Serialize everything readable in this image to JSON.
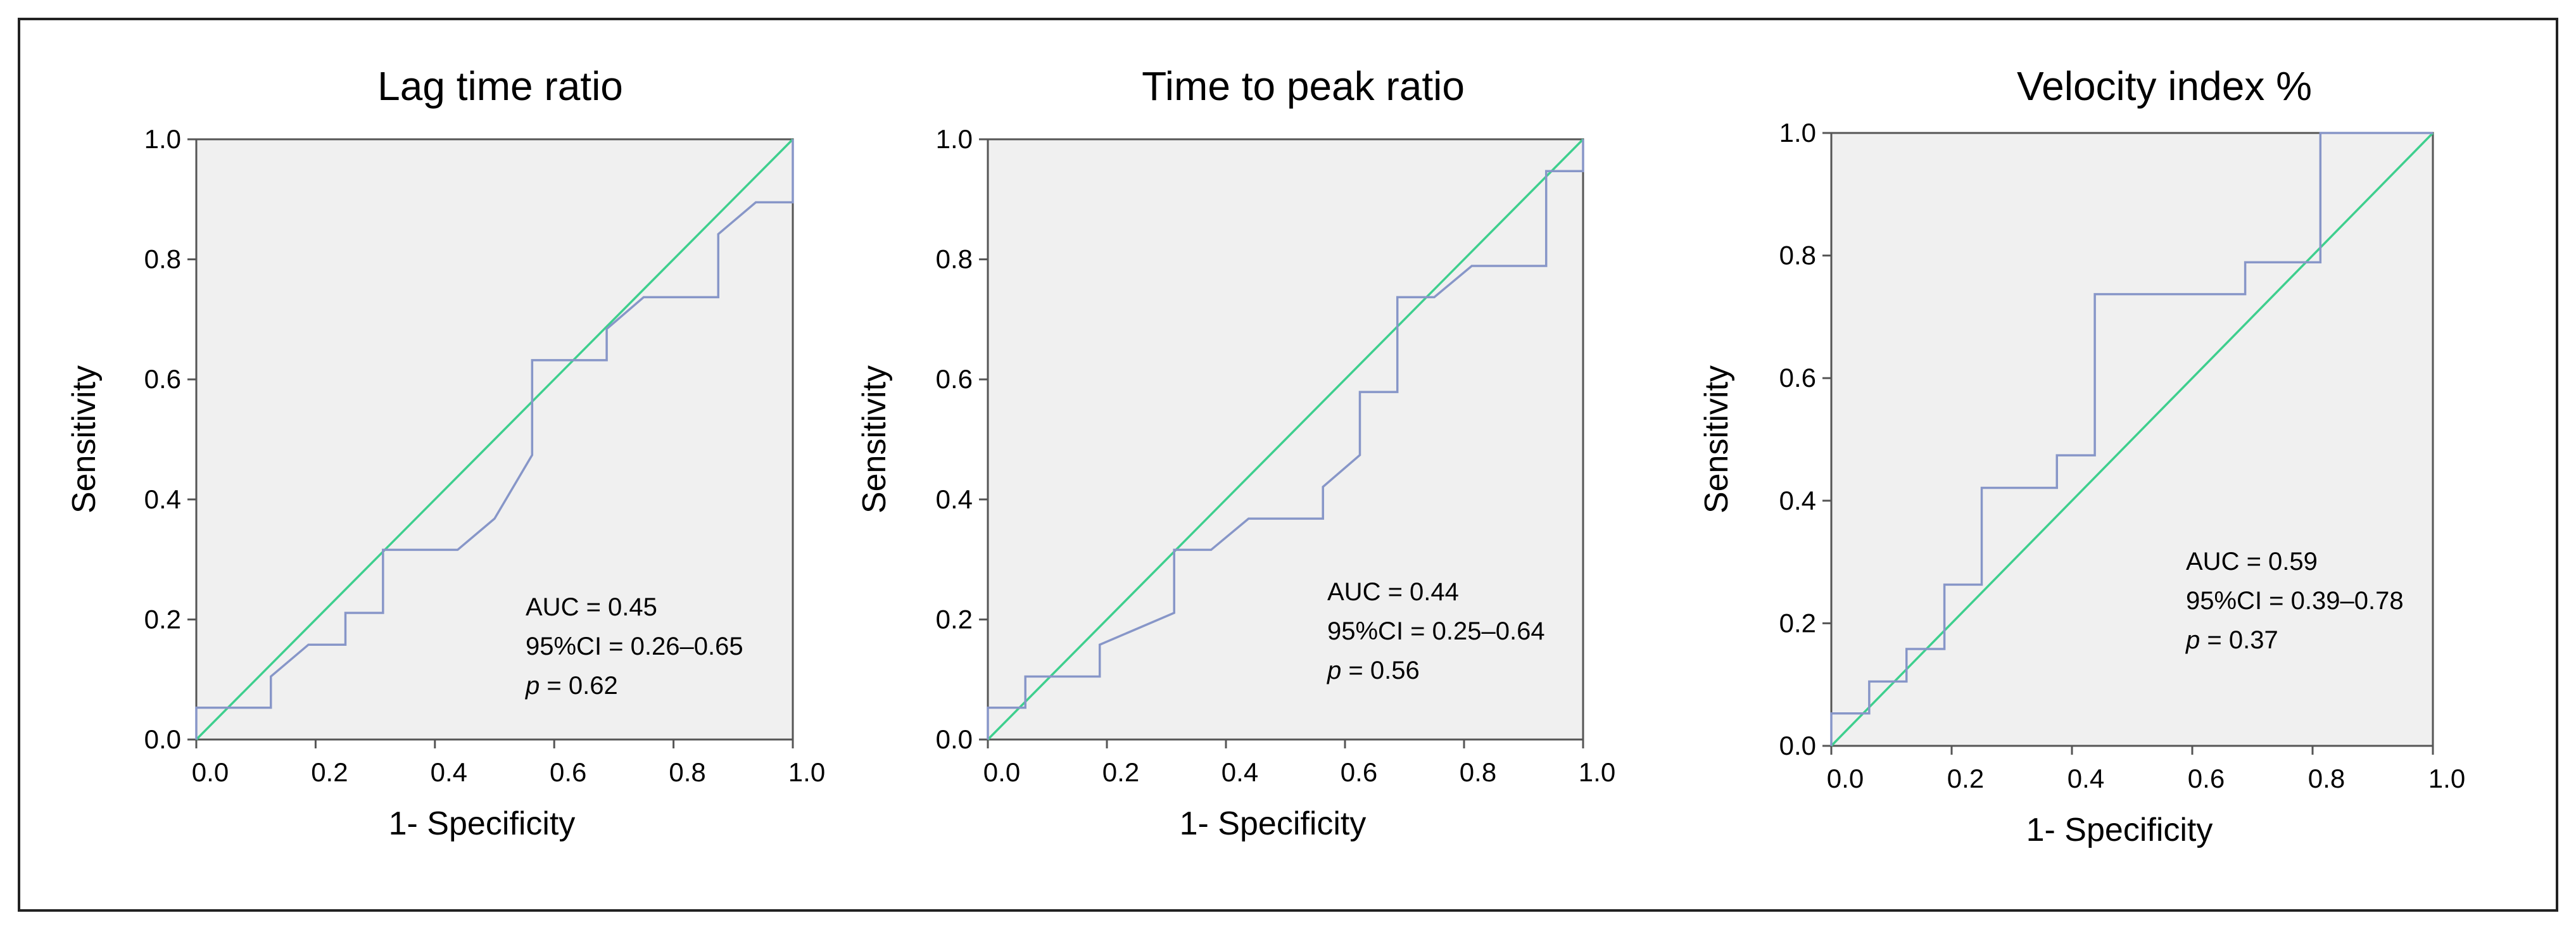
{
  "chart_data": [
    {
      "type": "line",
      "title": "Lag time ratio",
      "xlabel": "1- Specificity",
      "ylabel": "Sensitivity",
      "xlim": [
        0,
        1
      ],
      "ylim": [
        0,
        1
      ],
      "x_ticks": [
        "0.0",
        "0.2",
        "0.4",
        "0.6",
        "0.8",
        "1.0"
      ],
      "y_ticks": [
        "0.0",
        "0.2",
        "0.4",
        "0.6",
        "0.8",
        "1.0"
      ],
      "colors": {
        "roc": "#8796c8",
        "reference": "#3ecf8e",
        "background": "#f0f0f0"
      },
      "series": [
        {
          "name": "ROC curve",
          "x": [
            0,
            0,
            0.125,
            0.125,
            0.188,
            0.25,
            0.25,
            0.313,
            0.313,
            0.438,
            0.5,
            0.563,
            0.563,
            0.688,
            0.688,
            0.75,
            0.875,
            0.875,
            0.938,
            1.0,
            1.0
          ],
          "y": [
            0,
            0.053,
            0.053,
            0.105,
            0.158,
            0.158,
            0.211,
            0.211,
            0.316,
            0.316,
            0.368,
            0.474,
            0.632,
            0.632,
            0.684,
            0.737,
            0.737,
            0.842,
            0.895,
            0.895,
            1.0
          ]
        },
        {
          "name": "Reference line",
          "x": [
            0,
            1
          ],
          "y": [
            0,
            1
          ]
        }
      ],
      "stats": {
        "auc": "AUC = 0.45",
        "ci": "95%CI = 0.26–0.65",
        "p_label": "p",
        "p_value": " = 0.62"
      }
    },
    {
      "type": "line",
      "title": "Time to peak ratio",
      "xlabel": "1- Specificity",
      "ylabel": "Sensitivity",
      "xlim": [
        0,
        1
      ],
      "ylim": [
        0,
        1
      ],
      "x_ticks": [
        "0.0",
        "0.2",
        "0.4",
        "0.6",
        "0.8",
        "1.0"
      ],
      "y_ticks": [
        "0.0",
        "0.2",
        "0.4",
        "0.6",
        "0.8",
        "1.0"
      ],
      "colors": {
        "roc": "#8796c8",
        "reference": "#3ecf8e",
        "background": "#f0f0f0"
      },
      "series": [
        {
          "name": "ROC curve",
          "x": [
            0,
            0,
            0.063,
            0.063,
            0.188,
            0.188,
            0.313,
            0.313,
            0.375,
            0.438,
            0.563,
            0.563,
            0.625,
            0.625,
            0.688,
            0.688,
            0.75,
            0.813,
            0.938,
            0.938,
            1.0,
            1.0
          ],
          "y": [
            0,
            0.053,
            0.053,
            0.105,
            0.105,
            0.158,
            0.211,
            0.316,
            0.316,
            0.368,
            0.368,
            0.421,
            0.474,
            0.579,
            0.579,
            0.737,
            0.737,
            0.789,
            0.789,
            0.947,
            0.947,
            1.0
          ]
        },
        {
          "name": "Reference line",
          "x": [
            0,
            1
          ],
          "y": [
            0,
            1
          ]
        }
      ],
      "stats": {
        "auc": "AUC = 0.44",
        "ci": "95%CI = 0.25–0.64",
        "p_label": "p",
        "p_value": " = 0.56"
      }
    },
    {
      "type": "line",
      "title": "Velocity index %",
      "xlabel": "1- Specificity",
      "ylabel": "Sensitivity",
      "xlim": [
        0,
        1
      ],
      "ylim": [
        0,
        1
      ],
      "x_ticks": [
        "0.0",
        "0.2",
        "0.4",
        "0.6",
        "0.8",
        "1.0"
      ],
      "y_ticks": [
        "0.0",
        "0.2",
        "0.4",
        "0.6",
        "0.8",
        "1.0"
      ],
      "colors": {
        "roc": "#8796c8",
        "reference": "#3ecf8e",
        "background": "#f0f0f0"
      },
      "series": [
        {
          "name": "ROC curve",
          "x": [
            0,
            0,
            0.063,
            0.063,
            0.125,
            0.125,
            0.188,
            0.188,
            0.25,
            0.25,
            0.375,
            0.375,
            0.438,
            0.438,
            0.688,
            0.688,
            0.813,
            0.813,
            1.0
          ],
          "y": [
            0,
            0.053,
            0.053,
            0.105,
            0.105,
            0.158,
            0.158,
            0.263,
            0.263,
            0.421,
            0.421,
            0.474,
            0.474,
            0.737,
            0.737,
            0.789,
            0.789,
            1.0,
            1.0
          ]
        },
        {
          "name": "Reference line",
          "x": [
            0,
            1
          ],
          "y": [
            0,
            1
          ]
        }
      ],
      "stats": {
        "auc": "AUC = 0.59",
        "ci": "95%CI = 0.39–0.78",
        "p_label": "p",
        "p_value": " = 0.37"
      }
    }
  ]
}
